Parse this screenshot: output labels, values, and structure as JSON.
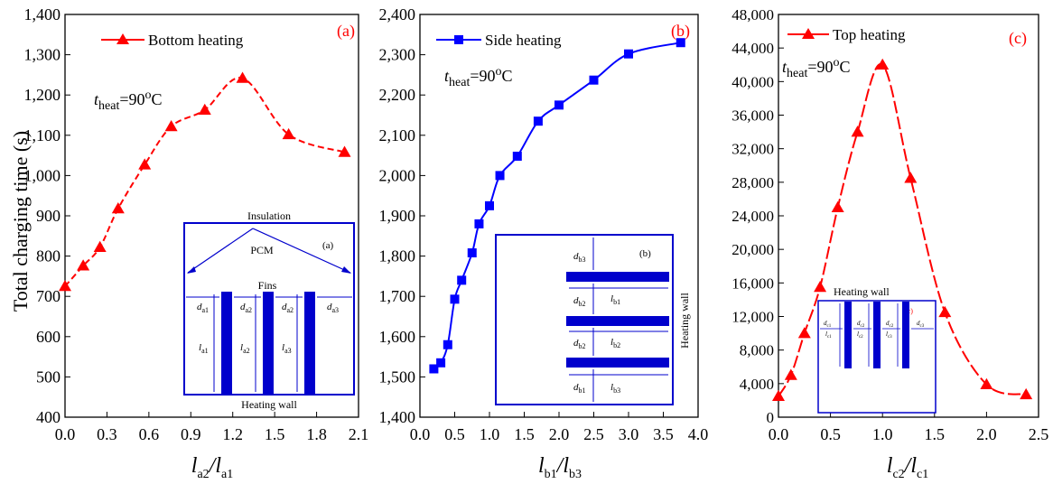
{
  "y_axis_label": "Total charging time (s)",
  "colors": {
    "a": "#ff0000",
    "b": "#0000ff",
    "c": "#ff0000",
    "inset": "#0000cc"
  },
  "chart_data": [
    {
      "type": "line",
      "panel_label": "(a)",
      "legend": "Bottom heating",
      "marker": "triangle",
      "annotation": {
        "t": "t",
        "sub": "heat",
        "rest": "=90",
        "sup": "o",
        "unit": "C"
      },
      "xlabel": {
        "main": "l",
        "sub1": "a2",
        "slash": "/l",
        "sub2": "a1"
      },
      "xlim": [
        0,
        2.1
      ],
      "ylim": [
        400,
        1400
      ],
      "xticks": [
        "0.0",
        "0.3",
        "0.6",
        "0.9",
        "1.2",
        "1.5",
        "1.8",
        "2.1"
      ],
      "yticks": [
        "400",
        "500",
        "600",
        "700",
        "800",
        "900",
        "1,000",
        "1,100",
        "1,200",
        "1,300",
        "1,400"
      ],
      "x": [
        0.0,
        0.13,
        0.25,
        0.38,
        0.57,
        0.76,
        1.0,
        1.27,
        1.6,
        2.0
      ],
      "y": [
        725,
        776,
        822,
        918,
        1027,
        1122,
        1163,
        1242,
        1102,
        1058
      ],
      "inset": {
        "panel_label": "(a)",
        "top_label": "Insulation",
        "middle_label": "PCM",
        "fins_label": "Fins",
        "bottom_label": "Heating wall",
        "d_labels": [
          [
            "d",
            "a1"
          ],
          [
            "d",
            "a2"
          ],
          [
            "d",
            "a2"
          ],
          [
            "d",
            "a3"
          ]
        ],
        "l_labels": [
          [
            "l",
            "a1"
          ],
          [
            "l",
            "a2"
          ],
          [
            "l",
            "a3"
          ]
        ]
      }
    },
    {
      "type": "line",
      "panel_label": "(b)",
      "legend": "Side heating",
      "marker": "square",
      "annotation": {
        "t": "t",
        "sub": "heat",
        "rest": "=90",
        "sup": "o",
        "unit": "C"
      },
      "xlabel": {
        "main": "l",
        "sub1": "b1",
        "slash": "/l",
        "sub2": "b3"
      },
      "xlim": [
        0,
        4.0
      ],
      "ylim": [
        1400,
        2400
      ],
      "xticks": [
        "0.0",
        "0.5",
        "1.0",
        "1.5",
        "2.0",
        "2.5",
        "3.0",
        "3.5",
        "4.0"
      ],
      "yticks": [
        "1,400",
        "1,500",
        "1,600",
        "1,700",
        "1,800",
        "1,900",
        "2,000",
        "2,100",
        "2,200",
        "2,300",
        "2,400"
      ],
      "x": [
        0.2,
        0.3,
        0.4,
        0.5,
        0.6,
        0.75,
        0.85,
        1.0,
        1.15,
        1.4,
        1.7,
        2.0,
        2.5,
        3.0,
        3.75
      ],
      "y": [
        1520,
        1535,
        1580,
        1693,
        1740,
        1808,
        1880,
        1925,
        2000,
        2048,
        2135,
        2175,
        2237,
        2302,
        2330
      ],
      "inset": {
        "panel_label": "(b)",
        "side_label": "Heating wall",
        "d_labels": [
          [
            "d",
            "b3"
          ],
          [
            "d",
            "b2"
          ],
          [
            "d",
            "b2"
          ],
          [
            "d",
            "b1"
          ]
        ],
        "l_labels": [
          [
            "l",
            "b1"
          ],
          [
            "l",
            "b2"
          ],
          [
            "l",
            "b3"
          ]
        ]
      }
    },
    {
      "type": "line",
      "panel_label": "(c)",
      "legend": "Top heating",
      "marker": "triangle",
      "annotation": {
        "t": "t",
        "sub": "heat",
        "rest": "=90",
        "sup": "o",
        "unit": "C"
      },
      "xlabel": {
        "main": "l",
        "sub1": "c2",
        "slash": "/l",
        "sub2": "c1"
      },
      "xlim": [
        0,
        2.5
      ],
      "ylim": [
        0,
        48000
      ],
      "xticks": [
        "0.0",
        "0.5",
        "1.0",
        "1.5",
        "2.0",
        "2.5"
      ],
      "yticks": [
        "0",
        "4,000",
        "8,000",
        "12,000",
        "16,000",
        "20,000",
        "24,000",
        "28,000",
        "32,000",
        "36,000",
        "40,000",
        "44,000",
        "48,000"
      ],
      "x": [
        0.0,
        0.12,
        0.25,
        0.4,
        0.57,
        0.76,
        1.0,
        1.27,
        1.6,
        2.0,
        2.38
      ],
      "y": [
        2500,
        5000,
        10000,
        15500,
        25000,
        34000,
        42000,
        28500,
        12500,
        3900,
        2700
      ],
      "inset": {
        "top_label": "Heating wall",
        "panel_label": "(c)",
        "d_labels": [
          [
            "d",
            "c1"
          ],
          [
            "d",
            "c2"
          ],
          [
            "d",
            "c2"
          ],
          [
            "d",
            "c3"
          ]
        ],
        "l_labels": [
          [
            "l",
            "c1"
          ],
          [
            "l",
            "c2"
          ],
          [
            "l",
            "c3"
          ]
        ]
      }
    }
  ]
}
